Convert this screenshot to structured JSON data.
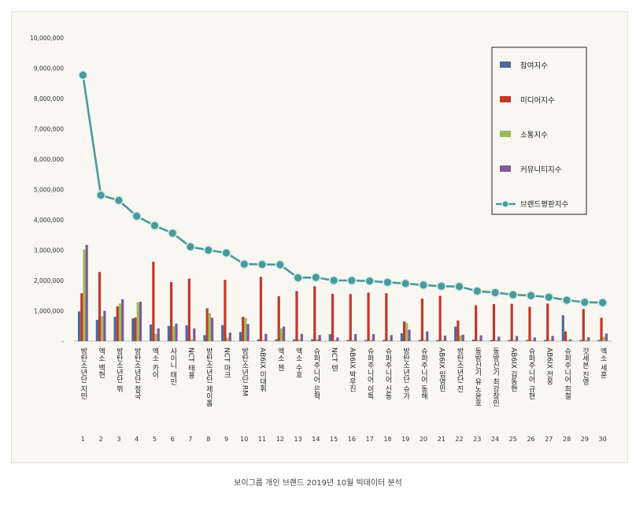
{
  "caption": "보이그룹 개인 브랜드 2019년 10월 빅데이터 분석",
  "colors": {
    "참여지수": "#4a6a9c",
    "미디어지수": "#c0392b",
    "소통지수": "#9bbb59",
    "커뮤니티지수": "#7d5a99",
    "브랜드평판지수": "#4a9a9a"
  },
  "chart_data": {
    "type": "bar",
    "ylim": [
      0,
      10000000
    ],
    "yticks": [
      "-",
      "1,000,000",
      "2,000,000",
      "3,000,000",
      "4,000,000",
      "5,000,000",
      "6,000,000",
      "7,000,000",
      "8,000,000",
      "9,000,000",
      "10,000,000"
    ],
    "ranks": [
      "1",
      "2",
      "3",
      "4",
      "5",
      "6",
      "7",
      "8",
      "9",
      "10",
      "11",
      "12",
      "13",
      "14",
      "15",
      "16",
      "17",
      "18",
      "19",
      "20",
      "21",
      "22",
      "23",
      "24",
      "25",
      "26",
      "27",
      "28",
      "29",
      "30"
    ],
    "categories": [
      "방탄소년단 지민",
      "엑소 백현",
      "방탄소년단 뷔",
      "방탄소년단 정국",
      "엑소 카이",
      "샤이니 태민",
      "NCT 태용",
      "방탄소년단 제이홉",
      "NCT 마크",
      "방탄소년단 RM",
      "AB6IX 이대휘",
      "엑소 첸",
      "엑소 수호",
      "슈퍼주니어 은혁",
      "NCT 텐",
      "AB6IX 박우진",
      "슈퍼주니어 이특",
      "슈퍼주니어 신동",
      "방탄소년단 슈가",
      "슈퍼주니어 동해",
      "AB6IX 임영민",
      "방탄소년단 진",
      "동방신기 유노윤호",
      "동방신기 최강창민",
      "AB6IX 김동현",
      "슈퍼주니어 규현",
      "AB6IX 전웅",
      "슈퍼주니어 희철",
      "갓세븐 진영",
      "엑소 세훈"
    ],
    "series": [
      {
        "name": "참여지수",
        "type": "bar",
        "values": [
          980000,
          700000,
          800000,
          750000,
          550000,
          500000,
          520000,
          200000,
          530000,
          300000,
          60000,
          60000,
          60000,
          60000,
          230000,
          40000,
          40000,
          40000,
          260000,
          40000,
          40000,
          480000,
          50000,
          40000,
          40000,
          40000,
          40000,
          850000,
          40000,
          40000
        ]
      },
      {
        "name": "미디어지수",
        "type": "bar",
        "values": [
          1580000,
          2280000,
          1150000,
          780000,
          2620000,
          1950000,
          2060000,
          1080000,
          2020000,
          800000,
          2120000,
          1480000,
          1650000,
          1810000,
          1560000,
          1550000,
          1600000,
          1580000,
          650000,
          1400000,
          1490000,
          680000,
          1180000,
          1220000,
          1230000,
          1130000,
          1240000,
          320000,
          1060000,
          770000
        ]
      },
      {
        "name": "소통지수",
        "type": "bar",
        "values": [
          3020000,
          820000,
          1240000,
          1280000,
          240000,
          490000,
          60000,
          920000,
          100000,
          770000,
          40000,
          420000,
          60000,
          70000,
          40000,
          40000,
          40000,
          40000,
          600000,
          40000,
          40000,
          180000,
          40000,
          40000,
          40000,
          40000,
          40000,
          40000,
          40000,
          140000
        ]
      },
      {
        "name": "커뮤니티지수",
        "type": "bar",
        "values": [
          3170000,
          1000000,
          1380000,
          1300000,
          420000,
          580000,
          420000,
          770000,
          280000,
          560000,
          240000,
          480000,
          240000,
          200000,
          120000,
          230000,
          230000,
          200000,
          380000,
          320000,
          180000,
          210000,
          190000,
          150000,
          170000,
          120000,
          170000,
          60000,
          130000,
          250000
        ]
      },
      {
        "name": "브랜드평판지수",
        "type": "line",
        "values": [
          8770000,
          4810000,
          4640000,
          4120000,
          3810000,
          3560000,
          3110000,
          3000000,
          2910000,
          2540000,
          2530000,
          2520000,
          2090000,
          2100000,
          2000000,
          2000000,
          1980000,
          1940000,
          1900000,
          1850000,
          1810000,
          1800000,
          1650000,
          1600000,
          1530000,
          1500000,
          1450000,
          1350000,
          1280000,
          1270000
        ]
      }
    ],
    "legend_position": "top-right",
    "grid": false
  }
}
